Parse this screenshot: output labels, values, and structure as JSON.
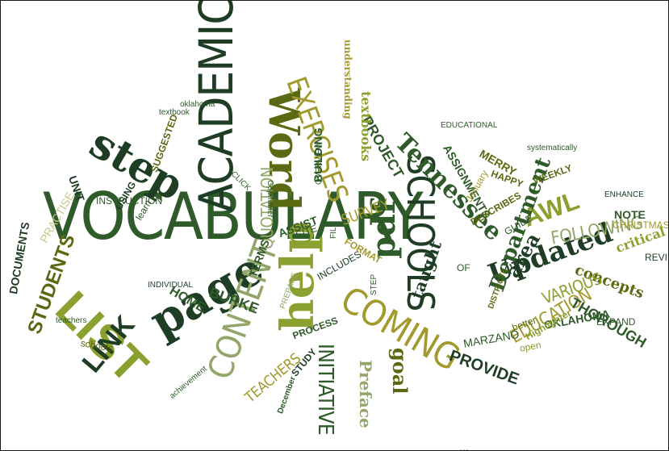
{
  "palette": {
    "dark": "#1e3d24",
    "forest": "#2f5a2a",
    "olive": "#5a6a12",
    "lime": "#8aa12f",
    "sage": "#93a66a",
    "pale": "#c9c98a",
    "mustard": "#a39a2e"
  },
  "words": [
    {
      "text": "VOCABULARY",
      "color": "forest"
    },
    {
      "text": "ACADEMIC",
      "color": "dark"
    },
    {
      "text": "Word",
      "color": "olive"
    },
    {
      "text": "SCHOOLS",
      "color": "dark"
    },
    {
      "text": "LIST",
      "color": "lime"
    },
    {
      "text": "step",
      "color": "dark"
    },
    {
      "text": "help",
      "color": "lime"
    },
    {
      "text": "page",
      "color": "dark"
    },
    {
      "text": "COMING",
      "color": "mustard"
    },
    {
      "text": "CONTENT",
      "color": "sage"
    },
    {
      "text": "EXERCISES",
      "color": "mustard"
    },
    {
      "text": "Tennessee",
      "color": "forest"
    },
    {
      "text": "pdf",
      "color": "forest"
    },
    {
      "text": "Updated",
      "color": "dark"
    },
    {
      "text": "AWL",
      "color": "lime"
    },
    {
      "text": "Department",
      "color": "forest"
    },
    {
      "text": "LINK",
      "color": "dark"
    },
    {
      "text": "STUDENTS",
      "color": "olive"
    },
    {
      "text": "INITIATIVE",
      "color": "forest"
    },
    {
      "text": "Preface",
      "color": "sage"
    },
    {
      "text": "goal",
      "color": "olive"
    },
    {
      "text": "PROVIDE",
      "color": "dark"
    },
    {
      "text": "EDUCATION",
      "color": "mustard"
    },
    {
      "text": "FOLLOWING",
      "color": "sage"
    },
    {
      "text": "QUOTATION",
      "color": "sage"
    },
    {
      "text": "PROJECT",
      "color": "forest"
    },
    {
      "text": "textbooks",
      "color": "lime"
    },
    {
      "text": "understanding",
      "color": "mustard"
    },
    {
      "text": "ASSIGNMENTS",
      "color": "forest"
    },
    {
      "text": "SURVEY",
      "color": "mustard"
    },
    {
      "text": "TEACHERS",
      "color": "mustard"
    },
    {
      "text": "taught",
      "color": "dark"
    },
    {
      "text": "area",
      "color": "dark"
    },
    {
      "text": "concepts",
      "color": "olive"
    },
    {
      "text": "THOROUGH",
      "color": "forest"
    },
    {
      "text": "VARIOUS",
      "color": "lime"
    },
    {
      "text": "OKLAHOMA",
      "color": "forest"
    },
    {
      "text": "critical",
      "color": "lime"
    },
    {
      "text": "BURKE",
      "color": "forest"
    },
    {
      "text": "HOME",
      "color": "forest"
    },
    {
      "text": "DOCUMENTS",
      "color": "dark"
    },
    {
      "text": "SUGGESTED",
      "color": "olive"
    },
    {
      "text": "INSTRUCTION",
      "color": "forest"
    },
    {
      "text": "BUILDING",
      "color": "forest"
    },
    {
      "text": "FORMAT",
      "color": "mustard"
    },
    {
      "text": "MARZANO",
      "color": "forest"
    },
    {
      "text": "Highlighter",
      "color": "lime"
    },
    {
      "text": "MERRY",
      "color": "olive"
    },
    {
      "text": "HAPPY",
      "color": "olive"
    },
    {
      "text": "NOTE",
      "color": "forest"
    },
    {
      "text": "CHRISTMAS",
      "color": "mustard"
    },
    {
      "text": "REVIEW",
      "color": "dark"
    },
    {
      "text": "systematically",
      "color": "forest"
    },
    {
      "text": "WEEKLY",
      "color": "olive"
    },
    {
      "text": "GUIDE",
      "color": "forest"
    },
    {
      "text": "ENHANCE",
      "color": "dark"
    },
    {
      "text": "EXPAND",
      "color": "forest"
    },
    {
      "text": "DISTRICTS",
      "color": "olive"
    },
    {
      "text": "better",
      "color": "olive"
    },
    {
      "text": "open",
      "color": "lime"
    },
    {
      "text": "PROCESS",
      "color": "forest"
    },
    {
      "text": "STUDY",
      "color": "dark"
    },
    {
      "text": "December",
      "color": "forest"
    },
    {
      "text": "achievement",
      "color": "forest"
    },
    {
      "text": "schools",
      "color": "olive"
    },
    {
      "text": "teachers",
      "color": "forest"
    },
    {
      "text": "Gopmaker",
      "color": "forest"
    },
    {
      "text": "ASSIST",
      "color": "forest"
    },
    {
      "text": "SITE",
      "color": "forest"
    },
    {
      "text": "TERMS",
      "color": "forest"
    },
    {
      "text": "PREPARE",
      "color": "sage"
    },
    {
      "text": "INCLUDES",
      "color": "dark"
    },
    {
      "text": "DESCRIBES",
      "color": "olive"
    },
    {
      "text": "January",
      "color": "mustard"
    },
    {
      "text": "UNIT",
      "color": "dark"
    },
    {
      "text": "learn",
      "color": "forest"
    },
    {
      "text": "USING",
      "color": "dark"
    },
    {
      "text": "PRACTISE",
      "color": "pale"
    },
    {
      "text": "INDIVIDUAL",
      "color": "dark"
    },
    {
      "text": "textbook",
      "color": "forest"
    },
    {
      "text": "oklahoma",
      "color": "forest"
    },
    {
      "text": "OVERVIEW",
      "color": "forest"
    },
    {
      "text": "CLICK",
      "color": "forest"
    },
    {
      "text": "FILE",
      "color": "forest"
    },
    {
      "text": "STEP",
      "color": "forest"
    },
    {
      "text": "OF",
      "color": "forest"
    },
    {
      "text": "EDUCATIONAL",
      "color": "forest"
    }
  ],
  "footer_text": "..."
}
